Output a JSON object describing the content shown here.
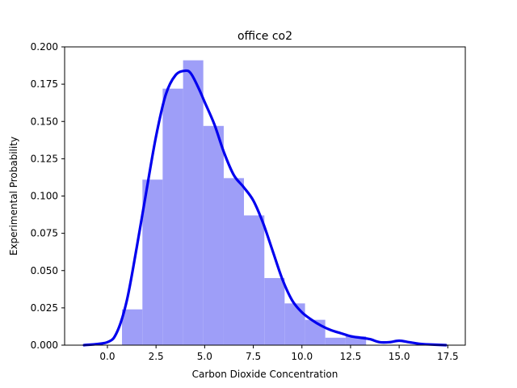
{
  "chart_data": {
    "type": "histogram",
    "title": "office co2",
    "xlabel": "Carbon Dioxide Concentration",
    "ylabel": "Experimental Probability",
    "xlim": [
      -2.2,
      18.4
    ],
    "ylim": [
      0.0,
      0.2
    ],
    "xticks": [
      0.0,
      2.5,
      5.0,
      7.5,
      10.0,
      12.5,
      15.0,
      17.5
    ],
    "xtick_labels": [
      "0.0",
      "2.5",
      "5.0",
      "7.5",
      "10.0",
      "12.5",
      "15.0",
      "17.5"
    ],
    "yticks": [
      0.0,
      0.025,
      0.05,
      0.075,
      0.1,
      0.125,
      0.15,
      0.175,
      0.2
    ],
    "ytick_labels": [
      "0.000",
      "0.025",
      "0.050",
      "0.075",
      "0.100",
      "0.125",
      "0.150",
      "0.175",
      "0.200"
    ],
    "bin_edges": [
      0.75,
      1.8,
      2.84,
      3.89,
      4.93,
      5.98,
      7.02,
      8.07,
      9.11,
      10.16,
      11.2,
      12.25,
      13.3
    ],
    "bin_values": [
      0.024,
      0.111,
      0.172,
      0.191,
      0.147,
      0.112,
      0.087,
      0.045,
      0.028,
      0.017,
      0.005,
      0.006
    ],
    "bar_color": "#9e9ef8",
    "kde": {
      "name": "KDE",
      "color": "#0000ee",
      "x": [
        -1.2,
        0.0,
        0.5,
        1.0,
        1.5,
        2.0,
        2.5,
        3.0,
        3.5,
        4.0,
        4.3,
        4.7,
        5.0,
        5.5,
        6.0,
        6.5,
        7.0,
        7.5,
        8.0,
        8.5,
        9.0,
        9.5,
        10.0,
        10.5,
        11.0,
        11.5,
        12.0,
        12.5,
        13.0,
        13.5,
        14.0,
        14.5,
        15.0,
        15.5,
        16.0,
        16.5,
        17.4
      ],
      "y": [
        0.0,
        0.002,
        0.009,
        0.03,
        0.065,
        0.103,
        0.14,
        0.168,
        0.181,
        0.184,
        0.182,
        0.172,
        0.163,
        0.148,
        0.129,
        0.114,
        0.106,
        0.097,
        0.082,
        0.063,
        0.044,
        0.03,
        0.022,
        0.017,
        0.013,
        0.01,
        0.008,
        0.006,
        0.005,
        0.004,
        0.002,
        0.002,
        0.003,
        0.002,
        0.001,
        0.0005,
        0.0
      ]
    }
  }
}
